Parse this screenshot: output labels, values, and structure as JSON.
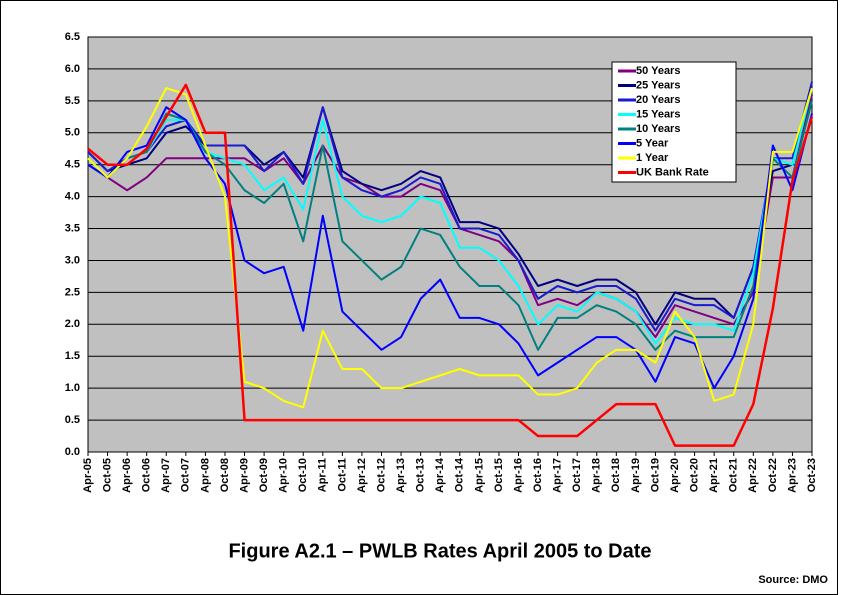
{
  "chart_data": {
    "type": "line",
    "title": "Figure A2.1 – PWLB Rates April 2005 to Date",
    "source": "Source: DMO",
    "categories": [
      "Apr-05",
      "Oct-05",
      "Apr-06",
      "Oct-06",
      "Apr-07",
      "Oct-07",
      "Apr-08",
      "Oct-08",
      "Apr-09",
      "Oct-09",
      "Apr-10",
      "Oct-10",
      "Apr-11",
      "Oct-11",
      "Apr-12",
      "Oct-12",
      "Apr-13",
      "Oct-13",
      "Apr-14",
      "Oct-14",
      "Apr-15",
      "Oct-15",
      "Apr-16",
      "Oct-16",
      "Apr-17",
      "Oct-17",
      "Apr-18",
      "Oct-18",
      "Apr-19",
      "Oct-19",
      "Apr-20",
      "Oct-20",
      "Apr-21",
      "Oct-21",
      "Apr-22",
      "Oct-22",
      "Apr-23",
      "Oct-23"
    ],
    "series": [
      {
        "name": "50 Years",
        "color": "#800080",
        "values": [
          4.5,
          4.3,
          4.1,
          4.3,
          4.6,
          4.6,
          4.6,
          4.6,
          4.6,
          4.4,
          4.6,
          4.2,
          4.8,
          4.3,
          4.2,
          4.0,
          4.0,
          4.2,
          4.1,
          3.5,
          3.4,
          3.3,
          3.0,
          2.3,
          2.4,
          2.3,
          2.5,
          2.4,
          2.2,
          1.8,
          2.3,
          2.2,
          2.1,
          2.0,
          2.5,
          4.3,
          4.3,
          5.6
        ]
      },
      {
        "name": "25 Years",
        "color": "#000080",
        "values": [
          4.7,
          4.4,
          4.5,
          4.6,
          5.0,
          5.1,
          4.8,
          4.8,
          4.8,
          4.5,
          4.7,
          4.3,
          5.4,
          4.4,
          4.2,
          4.1,
          4.2,
          4.4,
          4.3,
          3.6,
          3.6,
          3.5,
          3.1,
          2.6,
          2.7,
          2.6,
          2.7,
          2.7,
          2.5,
          2.0,
          2.5,
          2.4,
          2.4,
          2.1,
          2.9,
          4.4,
          4.5,
          5.7
        ]
      },
      {
        "name": "20 Years",
        "color": "#1a1ad0",
        "values": [
          4.7,
          4.4,
          4.6,
          4.7,
          5.1,
          5.2,
          4.8,
          4.8,
          4.8,
          4.4,
          4.7,
          4.2,
          5.4,
          4.3,
          4.1,
          4.0,
          4.1,
          4.3,
          4.2,
          3.5,
          3.5,
          3.4,
          3.0,
          2.4,
          2.6,
          2.5,
          2.6,
          2.6,
          2.4,
          1.9,
          2.4,
          2.3,
          2.3,
          2.1,
          2.9,
          4.6,
          4.6,
          5.8
        ]
      },
      {
        "name": "15 Years",
        "color": "#00ffff",
        "values": [
          4.6,
          4.3,
          4.6,
          4.7,
          5.2,
          5.2,
          4.7,
          4.6,
          4.5,
          4.1,
          4.3,
          3.8,
          5.2,
          4.0,
          3.7,
          3.6,
          3.7,
          4.0,
          3.9,
          3.2,
          3.2,
          3.0,
          2.6,
          2.0,
          2.3,
          2.2,
          2.5,
          2.4,
          2.2,
          1.7,
          2.1,
          2.0,
          2.0,
          1.9,
          2.8,
          4.6,
          4.5,
          5.7
        ]
      },
      {
        "name": "10 Years",
        "color": "#008080",
        "values": [
          4.5,
          4.3,
          4.6,
          4.7,
          5.3,
          5.2,
          4.7,
          4.5,
          4.1,
          3.9,
          4.2,
          3.3,
          4.8,
          3.3,
          3.0,
          2.7,
          2.9,
          3.5,
          3.4,
          2.9,
          2.6,
          2.6,
          2.3,
          1.6,
          2.1,
          2.1,
          2.3,
          2.2,
          2.0,
          1.6,
          1.9,
          1.8,
          1.8,
          1.8,
          2.6,
          4.6,
          4.3,
          5.5
        ]
      },
      {
        "name": "5 Year",
        "color": "#0000ff",
        "values": [
          4.5,
          4.3,
          4.7,
          4.8,
          5.4,
          5.2,
          4.6,
          4.2,
          3.0,
          2.8,
          2.9,
          1.9,
          3.7,
          2.2,
          1.9,
          1.6,
          1.8,
          2.4,
          2.7,
          2.1,
          2.1,
          2.0,
          1.7,
          1.2,
          1.4,
          1.6,
          1.8,
          1.8,
          1.6,
          1.1,
          1.8,
          1.7,
          1.0,
          1.5,
          2.4,
          4.8,
          4.1,
          5.3
        ]
      },
      {
        "name": "1 Year",
        "color": "#ffff00",
        "values": [
          4.6,
          4.3,
          4.6,
          5.1,
          5.7,
          5.6,
          4.8,
          4.0,
          1.1,
          1.0,
          0.8,
          0.7,
          1.9,
          1.3,
          1.3,
          1.0,
          1.0,
          1.1,
          1.2,
          1.3,
          1.2,
          1.2,
          1.2,
          0.9,
          0.9,
          1.0,
          1.4,
          1.6,
          1.6,
          1.4,
          2.2,
          1.8,
          0.8,
          0.9,
          2.0,
          4.7,
          4.7,
          5.7
        ]
      },
      {
        "name": "UK Bank Rate",
        "color": "#ff0000",
        "values": [
          4.75,
          4.5,
          4.5,
          4.75,
          5.25,
          5.75,
          5.0,
          5.0,
          0.5,
          0.5,
          0.5,
          0.5,
          0.5,
          0.5,
          0.5,
          0.5,
          0.5,
          0.5,
          0.5,
          0.5,
          0.5,
          0.5,
          0.5,
          0.25,
          0.25,
          0.25,
          0.5,
          0.75,
          0.75,
          0.75,
          0.1,
          0.1,
          0.1,
          0.1,
          0.75,
          2.25,
          4.25,
          5.25
        ]
      }
    ],
    "ylim": [
      0,
      6.5
    ],
    "yticks": [
      {
        "value": 0,
        "label": "0.0"
      },
      0.5,
      {
        "value": 1,
        "label": "1.0"
      },
      1.5,
      {
        "value": 2,
        "label": "2.0"
      },
      2.5,
      {
        "value": 3,
        "label": "3.0"
      },
      3.5,
      {
        "value": 4,
        "label": "4.0"
      },
      4.5,
      {
        "value": 5,
        "label": "5.0"
      },
      5.5,
      {
        "value": 6,
        "label": "6.0"
      },
      6.5
    ],
    "grid": true,
    "background": "#c0c0c0",
    "legend": "top-right"
  }
}
